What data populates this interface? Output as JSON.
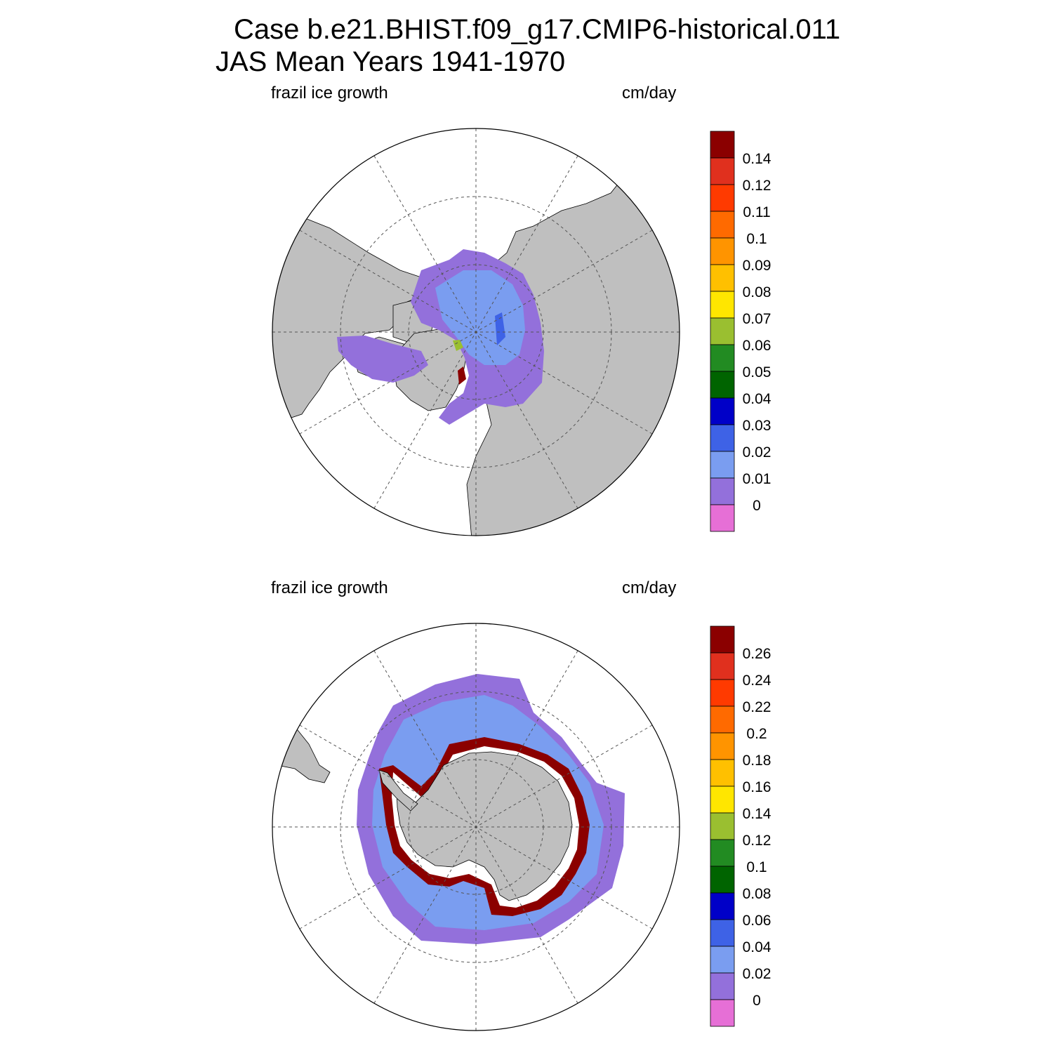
{
  "title_line1": "Case b.e21.BHIST.f09_g17.CMIP6-historical.011",
  "title_line2": "JAS Mean   Years 1941-1970",
  "panels": [
    {
      "id": "north",
      "field_label": "frazil ice growth",
      "units_label": "cm/day",
      "colorbar_labels": [
        "0.14",
        "0.12",
        "0.11",
        "0.1",
        "0.09",
        "0.08",
        "0.07",
        "0.06",
        "0.05",
        "0.04",
        "0.03",
        "0.02",
        "0.01",
        "0"
      ]
    },
    {
      "id": "south",
      "field_label": "frazil ice growth",
      "units_label": "cm/day",
      "colorbar_labels": [
        "0.26",
        "0.24",
        "0.22",
        "0.2",
        "0.18",
        "0.16",
        "0.14",
        "0.12",
        "0.1",
        "0.08",
        "0.06",
        "0.04",
        "0.02",
        "0"
      ]
    }
  ],
  "colors": {
    "levels_top_to_bottom": [
      "#8b0000",
      "#e0301e",
      "#ff3a00",
      "#ff6a00",
      "#ff9400",
      "#ffc000",
      "#ffe600",
      "#9abf30",
      "#228b22",
      "#006400",
      "#0000c8",
      "#3e62e6",
      "#7a9df0",
      "#9370db",
      "#e66fd6"
    ],
    "land": "#bfbfbf",
    "ocean": "#ffffff"
  }
}
